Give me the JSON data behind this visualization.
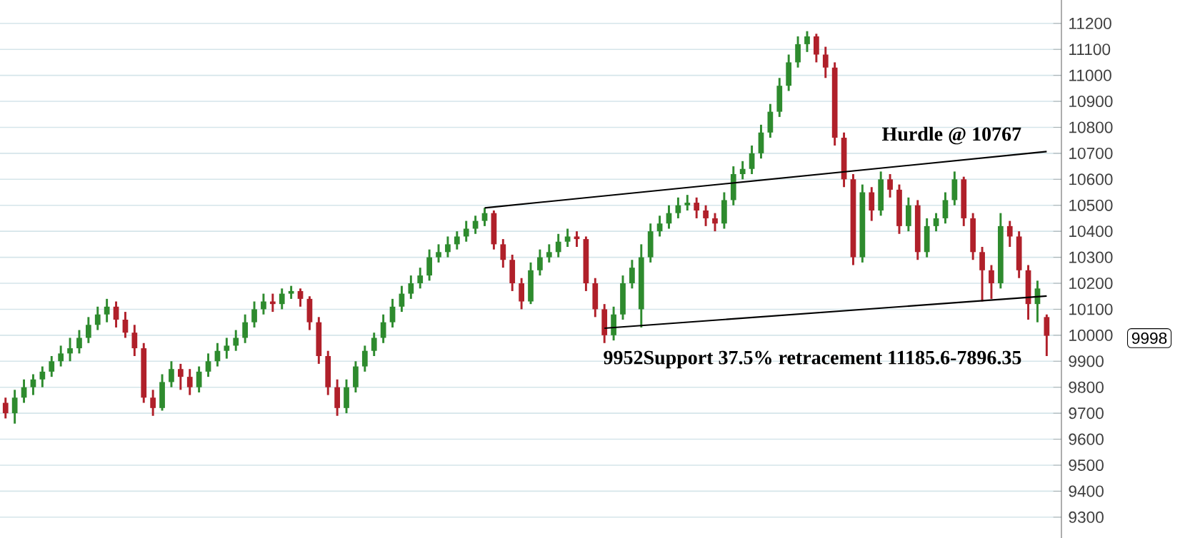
{
  "chart_data": {
    "type": "candlestick",
    "categories": [
      null,
      null,
      null,
      null,
      null,
      null,
      null,
      null,
      null,
      null,
      null,
      null,
      null,
      null,
      null,
      null,
      null,
      null,
      null,
      null,
      null,
      null,
      null,
      null,
      null,
      null,
      null,
      null,
      null,
      null,
      null,
      null,
      null,
      null,
      null,
      null,
      null,
      null,
      null,
      null,
      null,
      null,
      null,
      null,
      null,
      null,
      null,
      null,
      null,
      null,
      null,
      null,
      null,
      null,
      null,
      null,
      null,
      null,
      null,
      null,
      null,
      null,
      null,
      null,
      null,
      null,
      null,
      null,
      null,
      null,
      null,
      null,
      null,
      null,
      null,
      null,
      null,
      null,
      null,
      null,
      null,
      null,
      null,
      null,
      null,
      null,
      null,
      null,
      null,
      null,
      null,
      null,
      null,
      null,
      null,
      null,
      null,
      null,
      null,
      null,
      null,
      null,
      null,
      null,
      null,
      null,
      null,
      null,
      null,
      null,
      null,
      null,
      null,
      null
    ],
    "ohlc": [
      [
        9740,
        9760,
        9680,
        9700
      ],
      [
        9700,
        9790,
        9660,
        9760
      ],
      [
        9760,
        9830,
        9740,
        9800
      ],
      [
        9800,
        9850,
        9770,
        9830
      ],
      [
        9830,
        9880,
        9800,
        9860
      ],
      [
        9860,
        9920,
        9840,
        9900
      ],
      [
        9900,
        9960,
        9880,
        9930
      ],
      [
        9930,
        9990,
        9900,
        9950
      ],
      [
        9950,
        10020,
        9930,
        9990
      ],
      [
        9990,
        10070,
        9970,
        10040
      ],
      [
        10040,
        10110,
        10020,
        10080
      ],
      [
        10080,
        10140,
        10050,
        10110
      ],
      [
        10110,
        10130,
        10030,
        10060
      ],
      [
        10060,
        10090,
        9990,
        10010
      ],
      [
        10010,
        10040,
        9920,
        9950
      ],
      [
        9950,
        9970,
        9740,
        9760
      ],
      [
        9760,
        9790,
        9690,
        9720
      ],
      [
        9720,
        9850,
        9710,
        9820
      ],
      [
        9820,
        9900,
        9800,
        9870
      ],
      [
        9870,
        9890,
        9790,
        9840
      ],
      [
        9840,
        9870,
        9770,
        9800
      ],
      [
        9800,
        9880,
        9780,
        9860
      ],
      [
        9860,
        9930,
        9840,
        9900
      ],
      [
        9900,
        9970,
        9880,
        9940
      ],
      [
        9940,
        9990,
        9910,
        9960
      ],
      [
        9960,
        10020,
        9940,
        9990
      ],
      [
        9990,
        10080,
        9970,
        10050
      ],
      [
        10050,
        10130,
        10030,
        10100
      ],
      [
        10100,
        10160,
        10080,
        10130
      ],
      [
        10130,
        10160,
        10090,
        10120
      ],
      [
        10120,
        10180,
        10100,
        10160
      ],
      [
        10160,
        10190,
        10140,
        10170
      ],
      [
        10170,
        10180,
        10110,
        10140
      ],
      [
        10140,
        10150,
        10020,
        10050
      ],
      [
        10050,
        10070,
        9890,
        9920
      ],
      [
        9920,
        9940,
        9770,
        9800
      ],
      [
        9800,
        9830,
        9690,
        9720
      ],
      [
        9720,
        9830,
        9700,
        9800
      ],
      [
        9800,
        9900,
        9780,
        9880
      ],
      [
        9880,
        9960,
        9860,
        9940
      ],
      [
        9940,
        10010,
        9920,
        9990
      ],
      [
        9990,
        10080,
        9970,
        10050
      ],
      [
        10050,
        10140,
        10030,
        10110
      ],
      [
        10110,
        10190,
        10090,
        10160
      ],
      [
        10160,
        10230,
        10140,
        10200
      ],
      [
        10200,
        10260,
        10180,
        10230
      ],
      [
        10230,
        10330,
        10210,
        10300
      ],
      [
        10300,
        10350,
        10280,
        10320
      ],
      [
        10320,
        10380,
        10300,
        10350
      ],
      [
        10350,
        10400,
        10330,
        10380
      ],
      [
        10380,
        10440,
        10360,
        10410
      ],
      [
        10410,
        10460,
        10390,
        10440
      ],
      [
        10440,
        10490,
        10420,
        10470
      ],
      [
        10470,
        10480,
        10330,
        10350
      ],
      [
        10350,
        10370,
        10260,
        10290
      ],
      [
        10290,
        10310,
        10170,
        10200
      ],
      [
        10200,
        10220,
        10100,
        10130
      ],
      [
        10130,
        10280,
        10120,
        10250
      ],
      [
        10250,
        10330,
        10230,
        10300
      ],
      [
        10300,
        10350,
        10280,
        10320
      ],
      [
        10320,
        10390,
        10300,
        10360
      ],
      [
        10360,
        10410,
        10340,
        10380
      ],
      [
        10380,
        10400,
        10340,
        10370
      ],
      [
        10370,
        10380,
        10170,
        10200
      ],
      [
        10200,
        10220,
        10070,
        10100
      ],
      [
        10100,
        10120,
        9970,
        10000
      ],
      [
        10000,
        10110,
        9980,
        10080
      ],
      [
        10080,
        10230,
        10060,
        10200
      ],
      [
        10200,
        10290,
        10180,
        10260
      ],
      [
        10100,
        10350,
        10030,
        10300
      ],
      [
        10300,
        10430,
        10280,
        10400
      ],
      [
        10400,
        10460,
        10380,
        10430
      ],
      [
        10430,
        10500,
        10410,
        10470
      ],
      [
        10470,
        10530,
        10450,
        10500
      ],
      [
        10500,
        10540,
        10480,
        10510
      ],
      [
        10510,
        10530,
        10450,
        10480
      ],
      [
        10480,
        10500,
        10420,
        10450
      ],
      [
        10450,
        10470,
        10400,
        10430
      ],
      [
        10430,
        10550,
        10410,
        10520
      ],
      [
        10520,
        10650,
        10500,
        10620
      ],
      [
        10620,
        10670,
        10600,
        10640
      ],
      [
        10640,
        10730,
        10620,
        10700
      ],
      [
        10700,
        10810,
        10680,
        10780
      ],
      [
        10780,
        10890,
        10760,
        10860
      ],
      [
        10860,
        10990,
        10840,
        10960
      ],
      [
        10960,
        11080,
        10940,
        11050
      ],
      [
        11050,
        11150,
        11030,
        11120
      ],
      [
        11120,
        11170,
        11090,
        11150
      ],
      [
        11150,
        11160,
        11050,
        11080
      ],
      [
        11080,
        11110,
        10990,
        11030
      ],
      [
        11030,
        11050,
        10730,
        10760
      ],
      [
        10760,
        10780,
        10570,
        10600
      ],
      [
        10600,
        10620,
        10270,
        10300
      ],
      [
        10300,
        10580,
        10280,
        10550
      ],
      [
        10550,
        10570,
        10440,
        10480
      ],
      [
        10480,
        10630,
        10460,
        10600
      ],
      [
        10600,
        10620,
        10530,
        10560
      ],
      [
        10560,
        10580,
        10390,
        10420
      ],
      [
        10420,
        10530,
        10400,
        10500
      ],
      [
        10500,
        10520,
        10290,
        10320
      ],
      [
        10320,
        10450,
        10300,
        10420
      ],
      [
        10420,
        10470,
        10400,
        10450
      ],
      [
        10450,
        10550,
        10430,
        10520
      ],
      [
        10520,
        10630,
        10500,
        10600
      ],
      [
        10600,
        10610,
        10420,
        10450
      ],
      [
        10450,
        10470,
        10290,
        10320
      ],
      [
        10320,
        10340,
        10130,
        10250
      ],
      [
        10250,
        10270,
        10140,
        10200
      ],
      [
        10200,
        10470,
        10180,
        10420
      ],
      [
        10420,
        10440,
        10340,
        10380
      ],
      [
        10380,
        10400,
        10220,
        10250
      ],
      [
        10250,
        10270,
        10060,
        10120
      ],
      [
        10120,
        10210,
        10050,
        10180
      ],
      [
        10070,
        10080,
        9920,
        9998
      ]
    ],
    "series": [
      {
        "type": "line",
        "values": [
          null,
          null,
          null,
          null,
          null,
          null,
          null,
          null,
          null,
          null,
          null,
          null,
          null,
          null,
          null,
          null,
          null,
          null,
          null,
          null,
          null,
          null,
          null,
          null,
          null,
          null,
          null,
          null,
          null,
          null,
          null,
          null,
          null,
          null,
          null,
          null,
          null,
          null,
          null,
          null,
          null,
          null,
          null,
          null,
          null,
          null,
          null,
          null,
          null,
          null,
          null,
          null,
          10490,
          null,
          null,
          null,
          null,
          null,
          null,
          null,
          null,
          null,
          null,
          null,
          null,
          null,
          null,
          null,
          null,
          null,
          null,
          null,
          null,
          null,
          null,
          null,
          null,
          null,
          null,
          null,
          null,
          null,
          null,
          null,
          null,
          null,
          null,
          null,
          null,
          null,
          null,
          null,
          null,
          null,
          null,
          null,
          null,
          null,
          null,
          null,
          null,
          null,
          null,
          null,
          null,
          null,
          null,
          null,
          null,
          null,
          null,
          null,
          null,
          10707
        ],
        "color": "#000000"
      },
      {
        "type": "line",
        "values": [
          null,
          null,
          null,
          null,
          null,
          null,
          null,
          null,
          null,
          null,
          null,
          null,
          null,
          null,
          null,
          null,
          null,
          null,
          null,
          null,
          null,
          null,
          null,
          null,
          null,
          null,
          null,
          null,
          null,
          null,
          null,
          null,
          null,
          null,
          null,
          null,
          null,
          null,
          null,
          null,
          null,
          null,
          null,
          null,
          null,
          null,
          null,
          null,
          null,
          null,
          null,
          null,
          null,
          null,
          null,
          null,
          null,
          null,
          null,
          null,
          null,
          null,
          null,
          null,
          null,
          10027,
          null,
          null,
          null,
          null,
          null,
          null,
          null,
          null,
          null,
          null,
          null,
          null,
          null,
          null,
          null,
          null,
          null,
          null,
          null,
          null,
          null,
          null,
          null,
          null,
          null,
          null,
          null,
          null,
          null,
          null,
          null,
          null,
          null,
          null,
          null,
          null,
          null,
          null,
          null,
          null,
          null,
          null,
          null,
          null,
          null,
          null,
          null,
          10151
        ],
        "color": "#000000"
      }
    ],
    "annotations": [
      "Hurdle @ 10767",
      "9952Support  37.5% retracement 11185.6-7896.35",
      "9998"
    ],
    "ylim": [
      9220,
      11290
    ],
    "yticks": [
      9300,
      9400,
      9500,
      9600,
      9700,
      9800,
      9900,
      10000,
      10100,
      10200,
      10300,
      10400,
      10500,
      10600,
      10700,
      10800,
      10900,
      11000,
      11100,
      11200
    ],
    "grid": true,
    "tick_labels": "y"
  }
}
